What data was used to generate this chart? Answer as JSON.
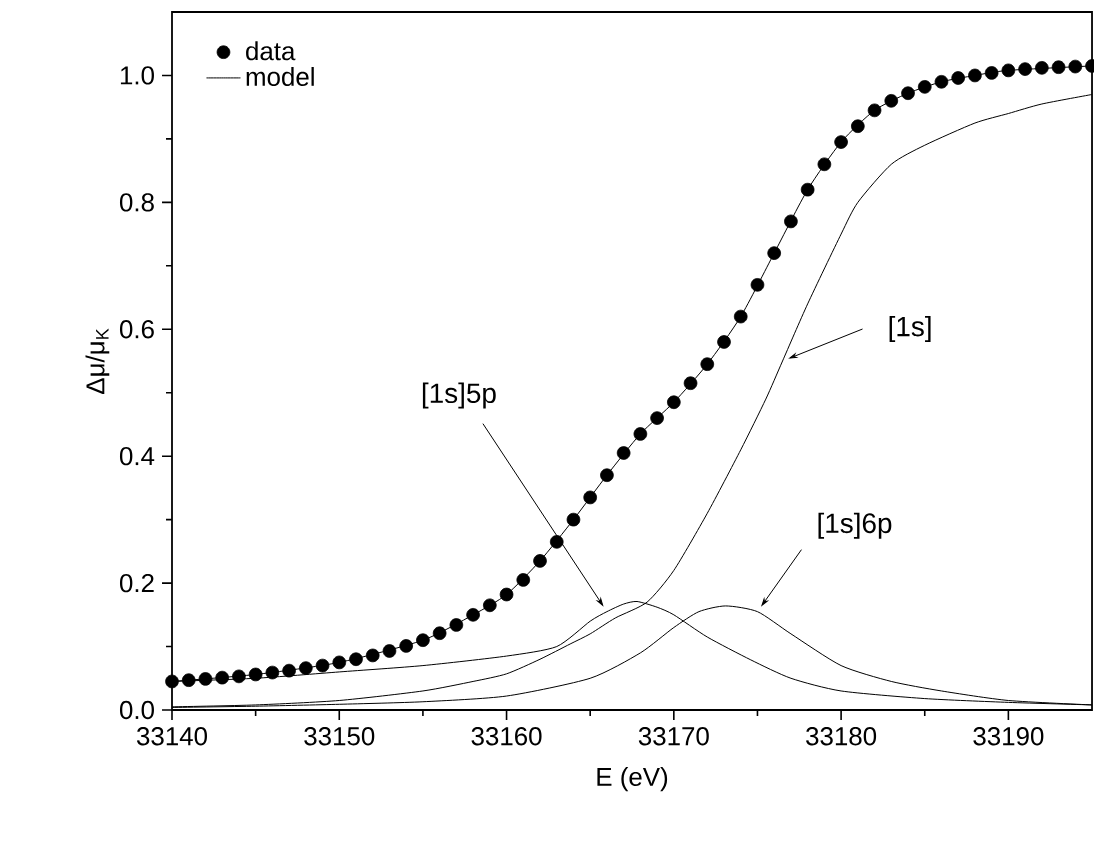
{
  "chart_data": {
    "type": "line",
    "xlabel": "E (eV)",
    "ylabel": "Δμ/μ$_{K}$",
    "xlim": [
      33140,
      33195
    ],
    "ylim": [
      0,
      1.1
    ],
    "xticks": [
      33140,
      33150,
      33160,
      33170,
      33180,
      33190
    ],
    "yticks": [
      {
        "value": 0,
        "label": "0.0"
      },
      {
        "value": 0.2,
        "label": "0.2"
      },
      {
        "value": 0.4,
        "label": "0.4"
      },
      {
        "value": 0.6,
        "label": "0.6"
      },
      {
        "value": 0.8,
        "label": "0.8"
      },
      {
        "value": 1,
        "label": "1.0"
      }
    ],
    "legend": "top left",
    "grid": false,
    "series": [
      {
        "name": "data",
        "type": "scatter",
        "color": "#000000",
        "x": [
          33140,
          33141,
          33142,
          33143,
          33144,
          33145,
          33146,
          33147,
          33148,
          33149,
          33150,
          33151,
          33152,
          33153,
          33154,
          33155,
          33156,
          33157,
          33158,
          33159,
          33160,
          33161,
          33162,
          33163,
          33164,
          33165,
          33166,
          33167,
          33168,
          33169,
          33170,
          33171,
          33172,
          33173,
          33174,
          33175,
          33176,
          33177,
          33178,
          33179,
          33180,
          33181,
          33182,
          33183,
          33184,
          33185,
          33186,
          33187,
          33188,
          33189,
          33190,
          33191,
          33192,
          33193,
          33194,
          33195
        ],
        "values": [
          0.045,
          0.047,
          0.049,
          0.051,
          0.053,
          0.056,
          0.059,
          0.062,
          0.066,
          0.07,
          0.075,
          0.08,
          0.086,
          0.093,
          0.101,
          0.11,
          0.121,
          0.134,
          0.15,
          0.165,
          0.182,
          0.205,
          0.235,
          0.265,
          0.3,
          0.335,
          0.37,
          0.405,
          0.435,
          0.46,
          0.485,
          0.515,
          0.545,
          0.58,
          0.62,
          0.67,
          0.72,
          0.77,
          0.82,
          0.86,
          0.895,
          0.92,
          0.945,
          0.96,
          0.972,
          0.982,
          0.99,
          0.996,
          1.0,
          1.004,
          1.008,
          1.01,
          1.012,
          1.013,
          1.014,
          1.015
        ]
      },
      {
        "name": "model",
        "color": "#000000",
        "x": [
          33140,
          33145,
          33150,
          33155,
          33158,
          33160,
          33162,
          33164,
          33166,
          33168,
          33170,
          33172,
          33174,
          33176,
          33178,
          33180,
          33182,
          33184,
          33186,
          33188,
          33190,
          33195
        ],
        "values": [
          0.045,
          0.056,
          0.075,
          0.11,
          0.15,
          0.182,
          0.235,
          0.3,
          0.37,
          0.435,
          0.485,
          0.545,
          0.62,
          0.72,
          0.82,
          0.895,
          0.945,
          0.972,
          0.99,
          1.0,
          1.008,
          1.015
        ]
      },
      {
        "color": "#000000",
        "x": [
          33140,
          33145,
          33150,
          33155,
          33158,
          33160,
          33162,
          33163.8,
          33165,
          33166.5,
          33168.4,
          33170,
          33172,
          33174,
          33175.5,
          33176.5,
          33178,
          33180,
          33181,
          33183,
          33185,
          33188,
          33190,
          33192,
          33195
        ],
        "values": [
          0.005,
          0.008,
          0.015,
          0.03,
          0.045,
          0.057,
          0.08,
          0.104,
          0.12,
          0.145,
          0.17,
          0.22,
          0.31,
          0.41,
          0.49,
          0.55,
          0.64,
          0.75,
          0.8,
          0.86,
          0.89,
          0.925,
          0.94,
          0.955,
          0.97
        ]
      },
      {
        "color": "#000000",
        "x": [
          33140,
          33145,
          33150,
          33155,
          33160,
          33163,
          33165,
          33166,
          33167,
          33167.8,
          33169,
          33170,
          33172,
          33174.6,
          33177,
          33180,
          33185,
          33190,
          33195
        ],
        "values": [
          0.045,
          0.05,
          0.06,
          0.07,
          0.085,
          0.1,
          0.14,
          0.155,
          0.167,
          0.171,
          0.162,
          0.15,
          0.115,
          0.079,
          0.05,
          0.03,
          0.018,
          0.012,
          0.008
        ]
      },
      {
        "color": "#000000",
        "x": [
          33140,
          33145,
          33150,
          33155,
          33160,
          33165,
          33168,
          33170,
          33171.5,
          33173.1,
          33175,
          33177,
          33180,
          33183,
          33186,
          33190,
          33195
        ],
        "values": [
          0.004,
          0.006,
          0.009,
          0.013,
          0.022,
          0.05,
          0.09,
          0.13,
          0.155,
          0.164,
          0.155,
          0.12,
          0.07,
          0.045,
          0.03,
          0.015,
          0.008
        ]
      }
    ],
    "annotations": [
      {
        "text": "[1s]",
        "x": 33176.5,
        "y": 0.55
      },
      {
        "text": "[1s]5p",
        "x": 33166,
        "y": 0.155
      },
      {
        "text": "[1s]6p",
        "x": 33175,
        "y": 0.155
      }
    ]
  }
}
